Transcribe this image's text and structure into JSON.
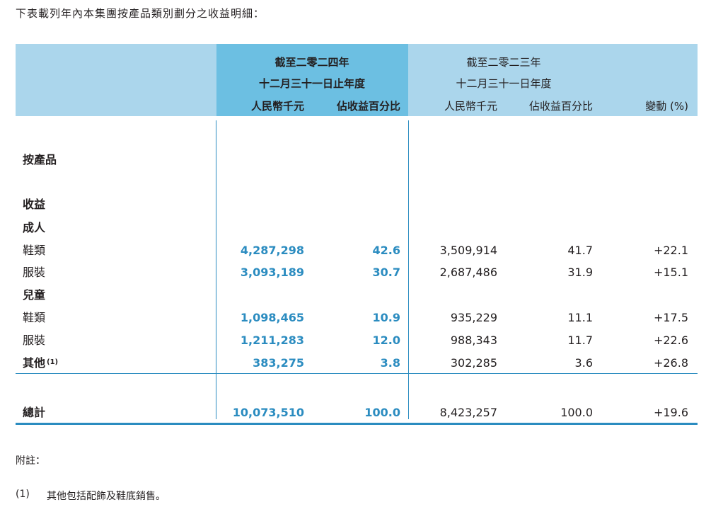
{
  "intro": "下表載列年內本集團按產品類別劃分之收益明細：",
  "header": {
    "y2024_line1": "截至二零二四年",
    "y2024_line2": "十二月三十一日止年度",
    "y2023_line1": "截至二零二三年",
    "y2023_line2": "十二月三十一日年度",
    "col_rmb_2024": "人民幣千元",
    "col_pct_2024": "佔收益百分比",
    "col_rmb_2023": "人民幣千元",
    "col_pct_2023": "佔收益百分比",
    "col_change": "變動 (%)"
  },
  "sections": {
    "by_product": "按產品",
    "revenue": "收益",
    "adult": "成人",
    "children": "兒童"
  },
  "rows": [
    {
      "label": "鞋類",
      "rmb_2024": "4,287,298",
      "pct_2024": "42.6",
      "rmb_2023": "3,509,914",
      "pct_2023": "41.7",
      "change": "+22.1"
    },
    {
      "label": "服裝",
      "rmb_2024": "3,093,189",
      "pct_2024": "30.7",
      "rmb_2023": "2,687,486",
      "pct_2023": "31.9",
      "change": "+15.1"
    },
    {
      "label": "鞋類",
      "rmb_2024": "1,098,465",
      "pct_2024": "10.9",
      "rmb_2023": "935,229",
      "pct_2023": "11.1",
      "change": "+17.5"
    },
    {
      "label": "服裝",
      "rmb_2024": "1,211,283",
      "pct_2024": "12.0",
      "rmb_2023": "988,343",
      "pct_2023": "11.7",
      "change": "+22.6"
    },
    {
      "label": "其他",
      "sup": "(1)",
      "rmb_2024": "383,275",
      "pct_2024": "3.8",
      "rmb_2023": "302,285",
      "pct_2023": "3.6",
      "change": "+26.8"
    }
  ],
  "total": {
    "label": "總計",
    "rmb_2024": "10,073,510",
    "pct_2024": "100.0",
    "rmb_2023": "8,423,257",
    "pct_2023": "100.0",
    "change": "+19.6"
  },
  "notes": {
    "title": "附註：",
    "n1_num": "(1)",
    "n1_text": "其他包括配飾及鞋底銷售。"
  }
}
